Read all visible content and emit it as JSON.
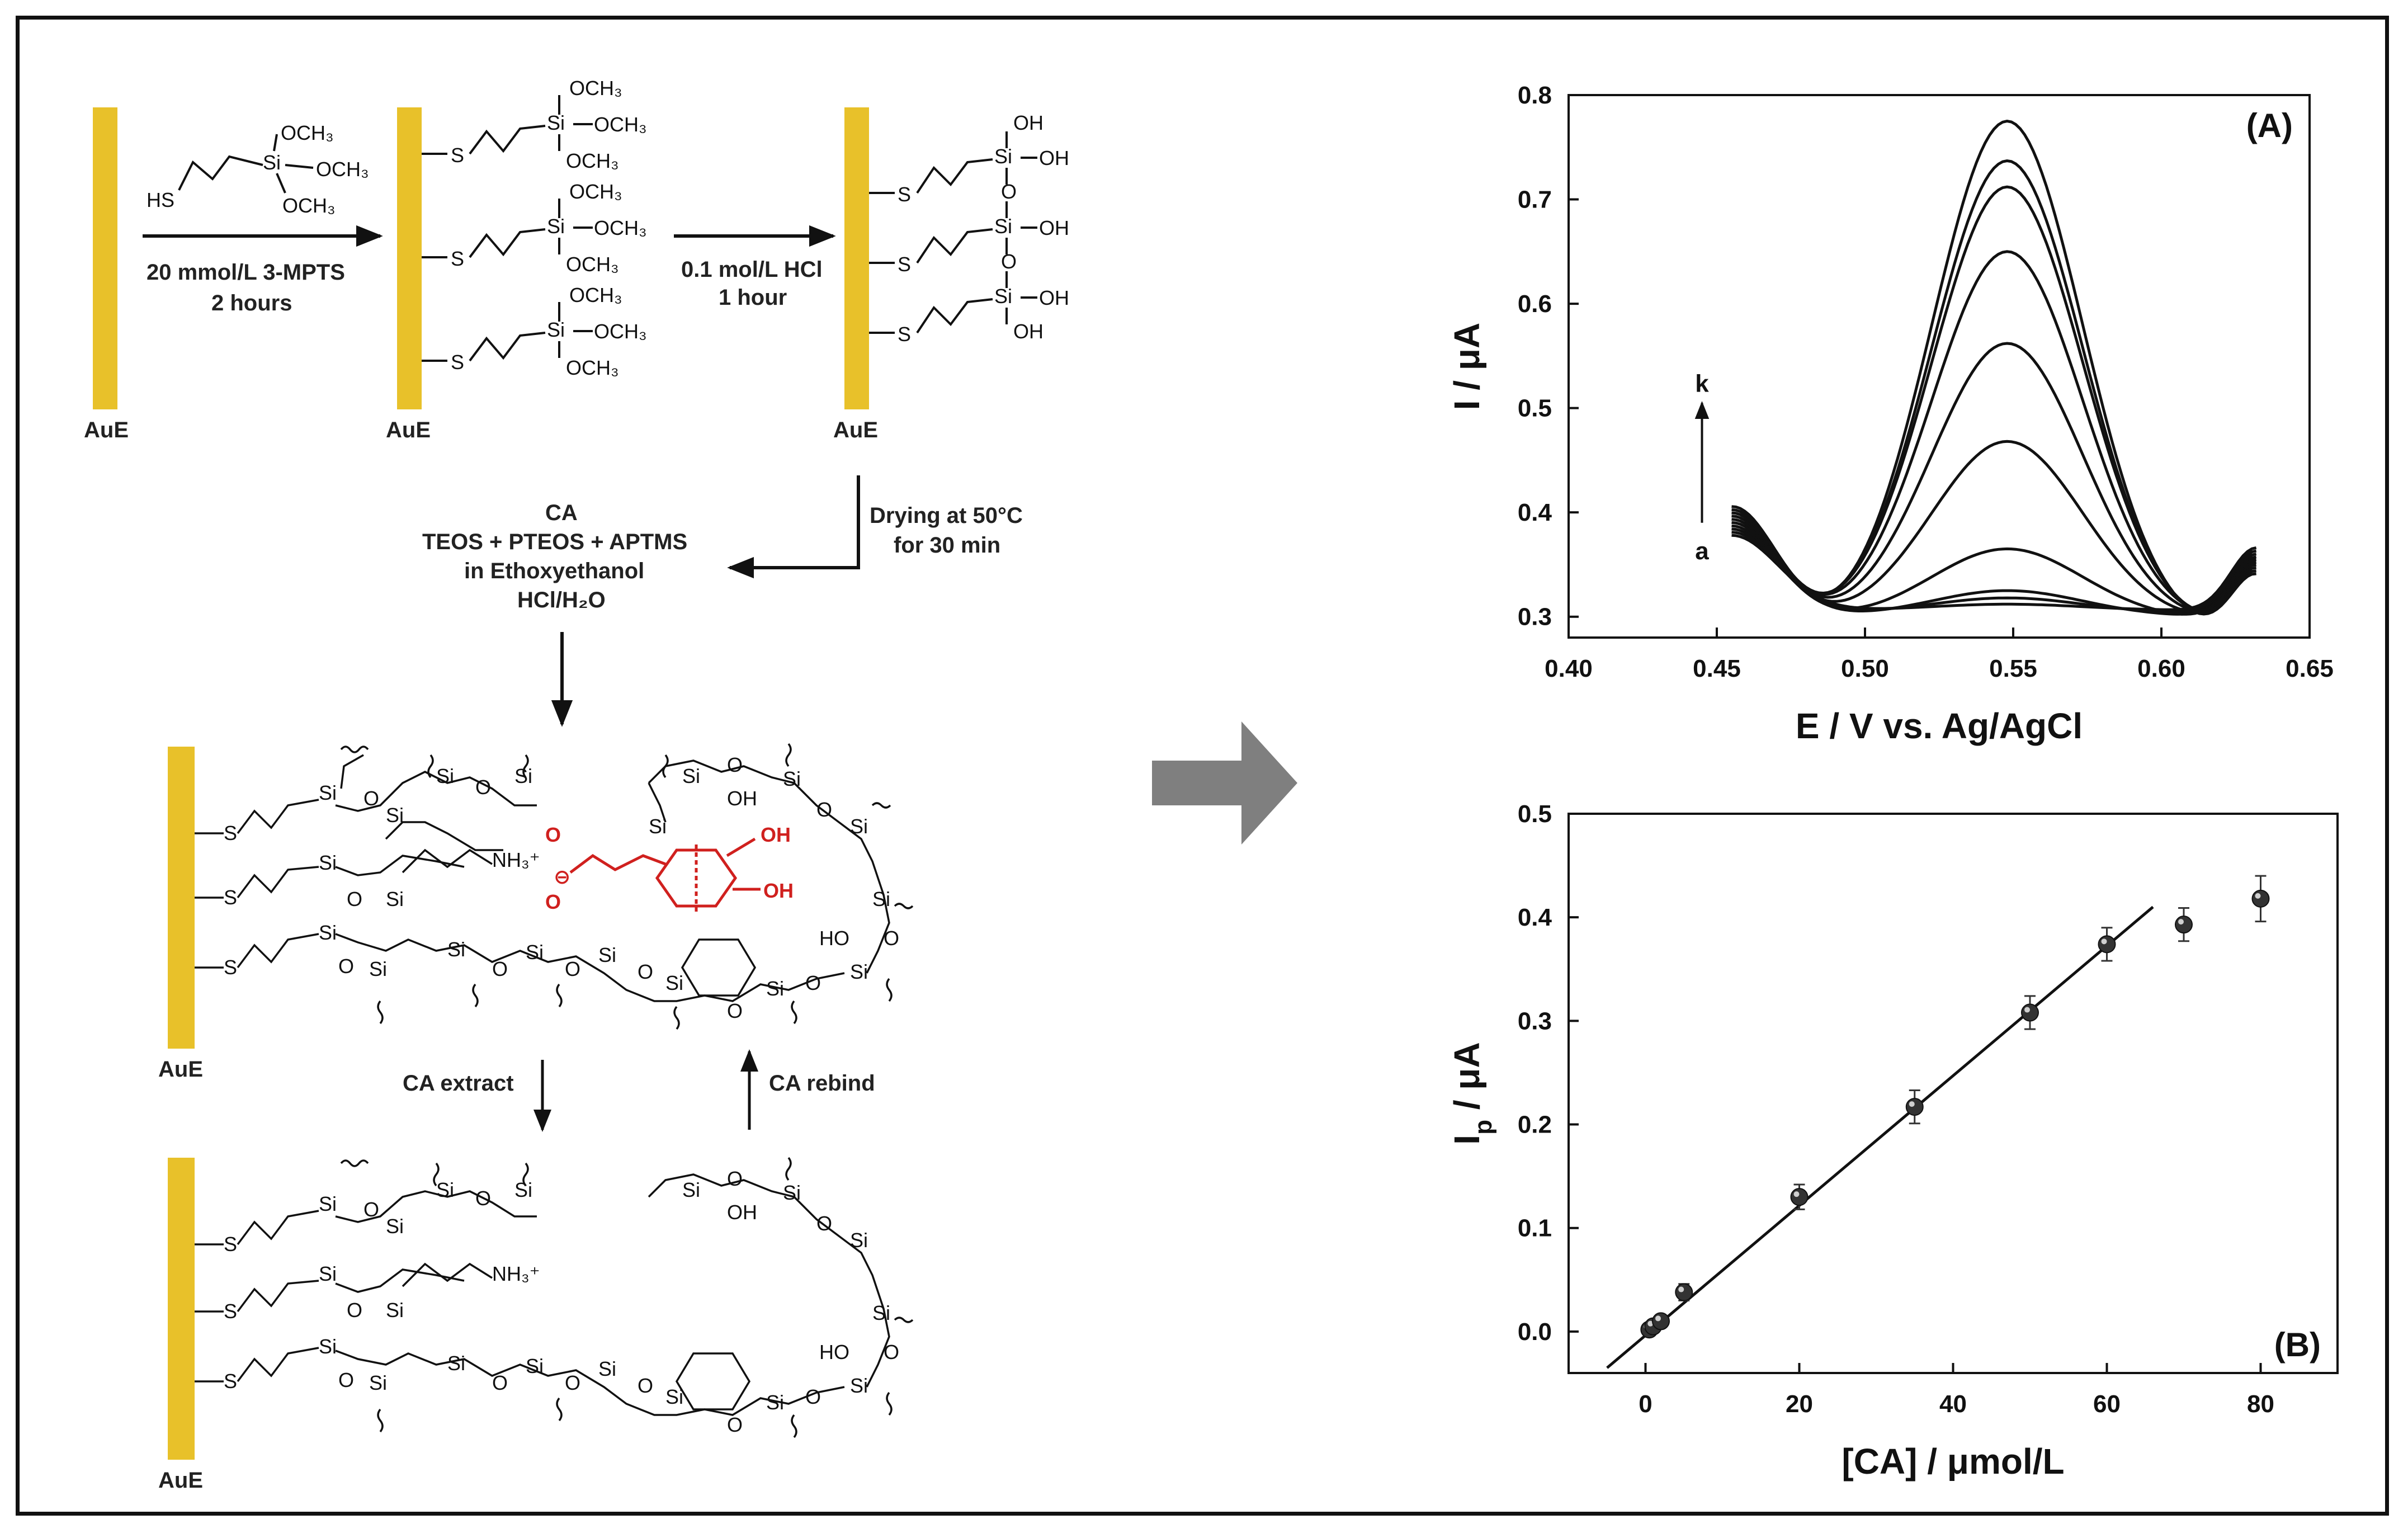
{
  "colors": {
    "gold": "#e8c12a",
    "red": "#d0201e",
    "arrow_gray": "#7f7f7f",
    "line": "#111111"
  },
  "scheme": {
    "electrode_label": "AuE",
    "mpts": {
      "l1": "OCH",
      "l2": "Si",
      "l3": "OCH",
      "l4": "OCH",
      "hs": "HS"
    },
    "step1": {
      "line1": "20 mmol/L 3-MPTS",
      "line2": "2 hours"
    },
    "step2": {
      "line1": "0.1 mol/L HCl",
      "line2": "1 hour"
    },
    "step3": {
      "line1": "Drying at 50°C",
      "line2": "for 30 min"
    },
    "step4": {
      "line1": "CA",
      "line2": "TEOS + PTEOS + APTMS",
      "line3": "in Ethoxyethanol",
      "line4": "HCl/H₂O"
    },
    "extract_label": "CA extract",
    "rebind_label": "CA rebind",
    "atoms": {
      "si": "Si",
      "o": "O",
      "s": "S",
      "oh": "OH",
      "ho": "HO",
      "och3": "OCH₃",
      "nh3": "NH₃⁺",
      "ominus": "O⊖"
    }
  },
  "chart_data": [
    {
      "type": "line",
      "title": "(A)",
      "xlabel": "E / V vs. Ag/AgCl",
      "ylabel": "I / μA",
      "xlim": [
        0.4,
        0.65
      ],
      "ylim": [
        0.28,
        0.8
      ],
      "xticks": [
        "0.40",
        "0.45",
        "0.50",
        "0.55",
        "0.60",
        "0.65"
      ],
      "yticks": [
        "0.3",
        "0.4",
        "0.5",
        "0.6",
        "0.7",
        "0.8"
      ],
      "curve_start_label": "a",
      "curve_end_label": "k",
      "peak_position": 0.548,
      "peak_heights": [
        0.312,
        0.318,
        0.325,
        0.365,
        0.468,
        0.562,
        0.65,
        0.712,
        0.737,
        0.775
      ],
      "x_range": [
        0.455,
        0.632
      ]
    },
    {
      "type": "scatter",
      "title": "(B)",
      "xlabel": "[CA] / μmol/L",
      "ylabel": "I",
      "ylabel_sub": "p",
      "ylabel_suffix": " / μA",
      "xlim": [
        -10,
        90
      ],
      "ylim": [
        -0.04,
        0.5
      ],
      "xticks": [
        "0",
        "20",
        "40",
        "60",
        "80"
      ],
      "yticks": [
        "0.0",
        "0.1",
        "0.2",
        "0.3",
        "0.4",
        "0.5"
      ],
      "points": {
        "x": [
          0.5,
          1,
          2,
          5,
          20,
          35,
          50,
          60,
          70,
          80
        ],
        "y": [
          0.002,
          0.005,
          0.01,
          0.038,
          0.13,
          0.217,
          0.308,
          0.374,
          0.393,
          0.418
        ],
        "err": [
          0.004,
          0.004,
          0.006,
          0.008,
          0.012,
          0.016,
          0.016,
          0.016,
          0.016,
          0.022
        ]
      },
      "fit_line": {
        "x": [
          -5,
          66
        ],
        "y": [
          -0.035,
          0.41
        ]
      }
    }
  ]
}
